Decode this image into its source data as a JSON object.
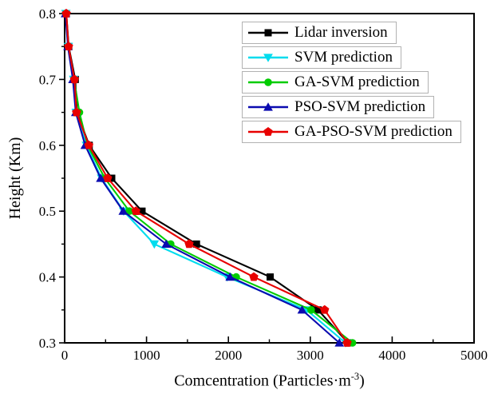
{
  "chart_data": {
    "type": "line",
    "title": "",
    "xlabel": "Comcentration (Particles·m⁻³)",
    "xlabel_parts": {
      "main": "Comcentration (Particles·m",
      "sup": "-3",
      "close": ")"
    },
    "ylabel": "Height (Km)",
    "xlim": [
      0,
      5000
    ],
    "ylim": [
      0.3,
      0.8
    ],
    "x_major_ticks": [
      0,
      1000,
      2000,
      3000,
      4000,
      5000
    ],
    "x_minor_tick_step": 500,
    "y_major_ticks": [
      0.3,
      0.4,
      0.5,
      0.6,
      0.7,
      0.8
    ],
    "y_minor_tick_step": 0.05,
    "grid": false,
    "frame": "full-box",
    "legend_position": "upper-right",
    "heights_km": [
      0.8,
      0.75,
      0.7,
      0.65,
      0.6,
      0.55,
      0.5,
      0.45,
      0.4,
      0.35,
      0.3
    ],
    "series": [
      {
        "name": "Lidar inversion",
        "color": "#000000",
        "marker": "square",
        "values": [
          20,
          50,
          130,
          150,
          300,
          575,
          945,
          1610,
          2510,
          3095,
          3460
        ]
      },
      {
        "name": "SVM prediction",
        "color": "#00dcee",
        "marker": "triangle-down",
        "values": [
          15,
          45,
          110,
          140,
          265,
          450,
          720,
          1095,
          1985,
          2955,
          3430
        ]
      },
      {
        "name": "GA-SVM prediction",
        "color": "#00cc00",
        "marker": "circle",
        "values": [
          15,
          45,
          115,
          180,
          280,
          490,
          790,
          1295,
          2095,
          3010,
          3515
        ]
      },
      {
        "name": "PSO-SVM prediction",
        "color": "#0b0bb0",
        "marker": "triangle-up",
        "values": [
          10,
          40,
          100,
          135,
          250,
          440,
          715,
          1240,
          2020,
          2900,
          3355
        ]
      },
      {
        "name": "GA-PSO-SVM prediction",
        "color": "#e80000",
        "marker": "pentagon",
        "values": [
          20,
          48,
          120,
          145,
          295,
          525,
          870,
          1520,
          2310,
          3175,
          3450
        ]
      }
    ]
  }
}
